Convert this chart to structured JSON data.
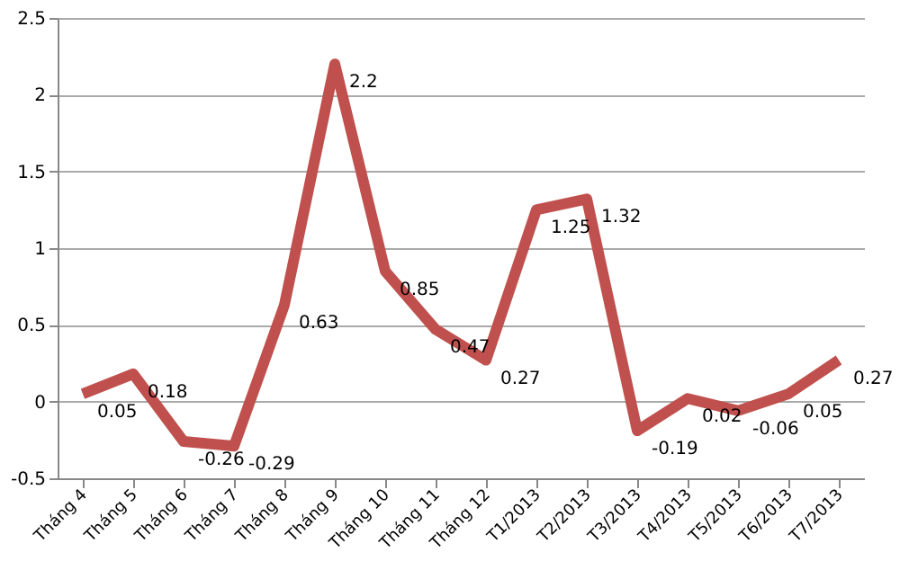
{
  "chart_data": {
    "type": "line",
    "categories": [
      "Tháng 4",
      "Tháng 5",
      "Tháng 6",
      "Tháng 7",
      "Tháng 8",
      "Tháng 9",
      "Tháng 10",
      "Tháng 11",
      "Tháng 12",
      "T1/2013",
      "T2/2013",
      "T3/2013",
      "T4/2013",
      "T5/2013",
      "T6/2013",
      "T7/2013"
    ],
    "series": [
      {
        "color": "#c0504d",
        "values": [
          0.05,
          0.18,
          -0.26,
          -0.29,
          0.63,
          2.2,
          0.85,
          0.47,
          0.27,
          1.25,
          1.32,
          -0.19,
          0.02,
          -0.06,
          0.05,
          0.27
        ]
      }
    ],
    "ylim": [
      -0.5,
      2.5
    ],
    "yticks": [
      -0.5,
      0,
      0.5,
      1,
      1.5,
      2,
      2.5
    ],
    "grid": "y",
    "data_labels": true,
    "marker": "none",
    "line_style": "solid",
    "legend": false
  }
}
